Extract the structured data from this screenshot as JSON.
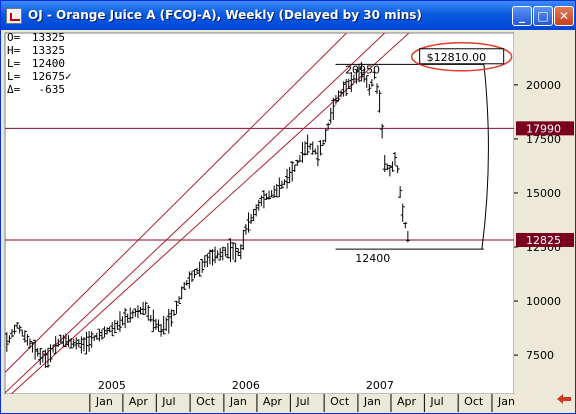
{
  "window": {
    "title": "OJ - Orange Juice A (FCOJ-A), Weekly (Delayed by 30 mins)"
  },
  "readout": [
    {
      "key": "O=",
      "value": "13325",
      "mark": ""
    },
    {
      "key": "H=",
      "value": "13325",
      "mark": ""
    },
    {
      "key": "L=",
      "value": "12400",
      "mark": ""
    },
    {
      "key": "L=",
      "value": "12675",
      "mark": "✓"
    },
    {
      "key": "Δ=",
      "value": "-635",
      "mark": ""
    }
  ],
  "colors": {
    "price_line": "#8B0A2E",
    "channel": "#B01E2E",
    "tag_bg": "#7A0020",
    "circle": "#E23C2A",
    "bars": "#000000",
    "plot_bg": "#FFFFFF",
    "frame_bg": "#ECE9D8"
  },
  "chart_data": {
    "type": "ohlc",
    "x_unit": "date",
    "y_axis": {
      "ticks": [
        7500,
        10000,
        12500,
        15000,
        17500,
        20000
      ],
      "range": [
        5700,
        22400
      ],
      "side": "right"
    },
    "x_axis": {
      "month_ticks": [
        {
          "date": "2005-01-01",
          "label": "Jan"
        },
        {
          "date": "2005-04-01",
          "label": "Apr"
        },
        {
          "date": "2005-07-01",
          "label": "Jul"
        },
        {
          "date": "2005-10-01",
          "label": "Oct"
        },
        {
          "date": "2006-01-01",
          "label": "Jan"
        },
        {
          "date": "2006-04-01",
          "label": "Apr"
        },
        {
          "date": "2006-07-01",
          "label": "Jul"
        },
        {
          "date": "2006-10-01",
          "label": "Oct"
        },
        {
          "date": "2007-01-01",
          "label": "Jan"
        },
        {
          "date": "2007-04-01",
          "label": "Apr"
        },
        {
          "date": "2007-07-01",
          "label": "Jul"
        },
        {
          "date": "2007-10-01",
          "label": "Oct"
        },
        {
          "date": "2008-01-01",
          "label": "Jan"
        }
      ],
      "year_labels": [
        {
          "date": "2005-01-01",
          "label": "2005"
        },
        {
          "date": "2006-01-01",
          "label": "2006"
        },
        {
          "date": "2007-01-01",
          "label": "2007"
        }
      ],
      "range": [
        "2004-05-15",
        "2008-03-01"
      ]
    },
    "horizontal_lines": [
      {
        "value": 17990,
        "label": "17990"
      },
      {
        "value": 12825,
        "label": "12825"
      }
    ],
    "annotations": [
      {
        "kind": "high_label",
        "text": "20950",
        "date": "2007-01-15",
        "value": 20950
      },
      {
        "kind": "low_label",
        "text": "12400",
        "date": "2007-02-01",
        "value": 12400
      },
      {
        "kind": "price_box",
        "text": "$12810.00"
      }
    ],
    "channels": [
      {
        "from": {
          "date": "2004-05-15",
          "value": 5750
        },
        "to": {
          "date": "2007-03-15",
          "value": 22400
        }
      },
      {
        "from": {
          "date": "2004-05-15",
          "value": 6700
        },
        "to": {
          "date": "2006-12-01",
          "value": 22400
        }
      },
      {
        "from": {
          "date": "2004-06-01",
          "value": 5700
        },
        "to": {
          "date": "2007-05-20",
          "value": 22400
        }
      }
    ],
    "trend_points": [
      [
        "2004-05-20",
        8000
      ],
      [
        "2004-06-15",
        8900
      ],
      [
        "2004-08-01",
        7800
      ],
      [
        "2004-09-01",
        7300
      ],
      [
        "2004-10-15",
        8200
      ],
      [
        "2004-12-15",
        8000
      ],
      [
        "2005-02-15",
        8600
      ],
      [
        "2005-05-01",
        9400
      ],
      [
        "2005-06-01",
        9700
      ],
      [
        "2005-06-15",
        9200
      ],
      [
        "2005-07-15",
        8700
      ],
      [
        "2005-08-15",
        9300
      ],
      [
        "2005-09-15",
        10700
      ],
      [
        "2005-11-15",
        11900
      ],
      [
        "2006-01-15",
        12400
      ],
      [
        "2006-02-15",
        12200
      ],
      [
        "2006-03-01",
        13300
      ],
      [
        "2006-04-15",
        14700
      ],
      [
        "2006-06-01",
        15200
      ],
      [
        "2006-07-15",
        16200
      ],
      [
        "2006-08-15",
        17300
      ],
      [
        "2006-09-15",
        16800
      ],
      [
        "2006-10-01",
        17400
      ],
      [
        "2006-11-01",
        19300
      ],
      [
        "2006-12-15",
        20200
      ],
      [
        "2007-01-15",
        20600
      ],
      [
        "2007-02-01",
        19800
      ],
      [
        "2007-02-15",
        20400
      ],
      [
        "2007-03-01",
        19300
      ],
      [
        "2007-03-15",
        16300
      ],
      [
        "2007-04-01",
        16000
      ],
      [
        "2007-04-15",
        16700
      ],
      [
        "2007-05-01",
        14300
      ],
      [
        "2007-05-20",
        12700
      ]
    ]
  }
}
